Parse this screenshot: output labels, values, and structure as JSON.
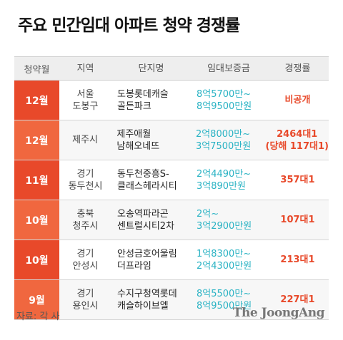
{
  "title": "주요 민간임대 아파트 청약 경쟁률",
  "headers": [
    "청약월",
    "지역",
    "단지명",
    "임대보증금",
    "경쟁률"
  ],
  "rows": [
    {
      "month": "12월",
      "region": [
        "서울",
        "도봉구"
      ],
      "complex": [
        "도봉롯데캐슬",
        "골든파크"
      ],
      "deposit": [
        "8억5700만~",
        "8억9500만원"
      ],
      "rate": [
        "비공개"
      ]
    },
    {
      "month": "12월",
      "region": [
        "제주시"
      ],
      "complex": [
        "제주애월",
        "남해오네뜨"
      ],
      "deposit": [
        "2억8000만~",
        "3억7500만원"
      ],
      "rate": [
        "2464대1",
        "(당해 117대1)"
      ]
    },
    {
      "month": "11월",
      "region": [
        "경기",
        "동두천시"
      ],
      "complex": [
        "동두천중흥S-",
        "클래스헤라시티"
      ],
      "deposit": [
        "2억4490만~",
        "3억890만원"
      ],
      "rate": [
        "357대1"
      ]
    },
    {
      "month": "10월",
      "region": [
        "충북",
        "청주시"
      ],
      "complex": [
        "오송역파라곤",
        "센트럴시티2차"
      ],
      "deposit": [
        "2억~",
        "3억2900만원"
      ],
      "rate": [
        "107대1"
      ]
    },
    {
      "month": "10월",
      "region": [
        "경기",
        "안성시"
      ],
      "complex": [
        "안성금호어울림",
        "더프라임"
      ],
      "deposit": [
        "1억8300만~",
        "2억4300만원"
      ],
      "rate": [
        "213대1"
      ]
    },
    {
      "month": "9월",
      "region": [
        "경기",
        "용인시"
      ],
      "complex": [
        "수지구청역롯데",
        "캐슬하이브엘"
      ],
      "deposit": [
        "8억5500만~",
        "8억9500만원"
      ],
      "rate": [
        "227대1"
      ]
    }
  ],
  "chart_data": {
    "type": "table",
    "columns": [
      "청약월",
      "지역",
      "단지명",
      "임대보증금",
      "경쟁률"
    ],
    "rows": [
      [
        "12월",
        "서울 도봉구",
        "도봉롯데캐슬 골든파크",
        "8억5700만~ 8억9500만원",
        "비공개"
      ],
      [
        "12월",
        "제주시",
        "제주애월 남해오네뜨",
        "2억8000만~ 3억7500만원",
        "2464대1 (당해 117대1)"
      ],
      [
        "11월",
        "경기 동두천시",
        "동두천중흥S- 클래스헤라시티",
        "2억4490만~ 3억890만원",
        "357대1"
      ],
      [
        "10월",
        "충북 청주시",
        "오송역파라곤 센트럴시티2차",
        "2억~ 3억2900만원",
        "107대1"
      ],
      [
        "10월",
        "경기 안성시",
        "안성금호어울림 더프라임",
        "1억8300만~ 2억4300만원",
        "213대1"
      ],
      [
        "9월",
        "경기 용인시",
        "수지구청역롯데 캐슬하이브엘",
        "8억5500만~ 8억9500만원",
        "227대1"
      ]
    ]
  },
  "source": "자료: 각 사",
  "brand": "The JoongAng",
  "colors": {
    "accent": "#e8492a",
    "accent_light": "#f0673f",
    "deposit": "#2bb3c4"
  }
}
